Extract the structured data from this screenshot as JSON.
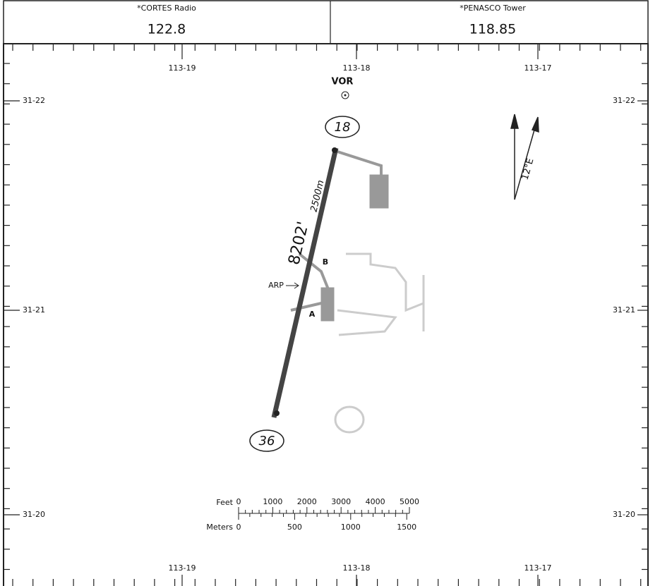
{
  "header": {
    "cells": [
      {
        "label": "*CORTES Radio",
        "freq": "122.8"
      },
      {
        "label": "*PENASCO Tower",
        "freq": "118.85"
      }
    ]
  },
  "grid": {
    "longitudes": [
      "113-19",
      "113-18",
      "113-17"
    ],
    "latitudes": [
      "31-22",
      "31-21",
      "31-20"
    ]
  },
  "runway": {
    "length": "8202'",
    "length_metric": "2500m",
    "ends": [
      "18",
      "36"
    ]
  },
  "labels": {
    "vor": "VOR",
    "arp": "ARP",
    "taxiways": [
      "A",
      "B"
    ],
    "variation": "12°E"
  },
  "scale": {
    "feet_label": "Feet",
    "feet": [
      "0",
      "1000",
      "2000",
      "3000",
      "4000",
      "5000"
    ],
    "meters_label": "Meters",
    "meters": [
      "0",
      "500",
      "1000",
      "1500"
    ]
  }
}
